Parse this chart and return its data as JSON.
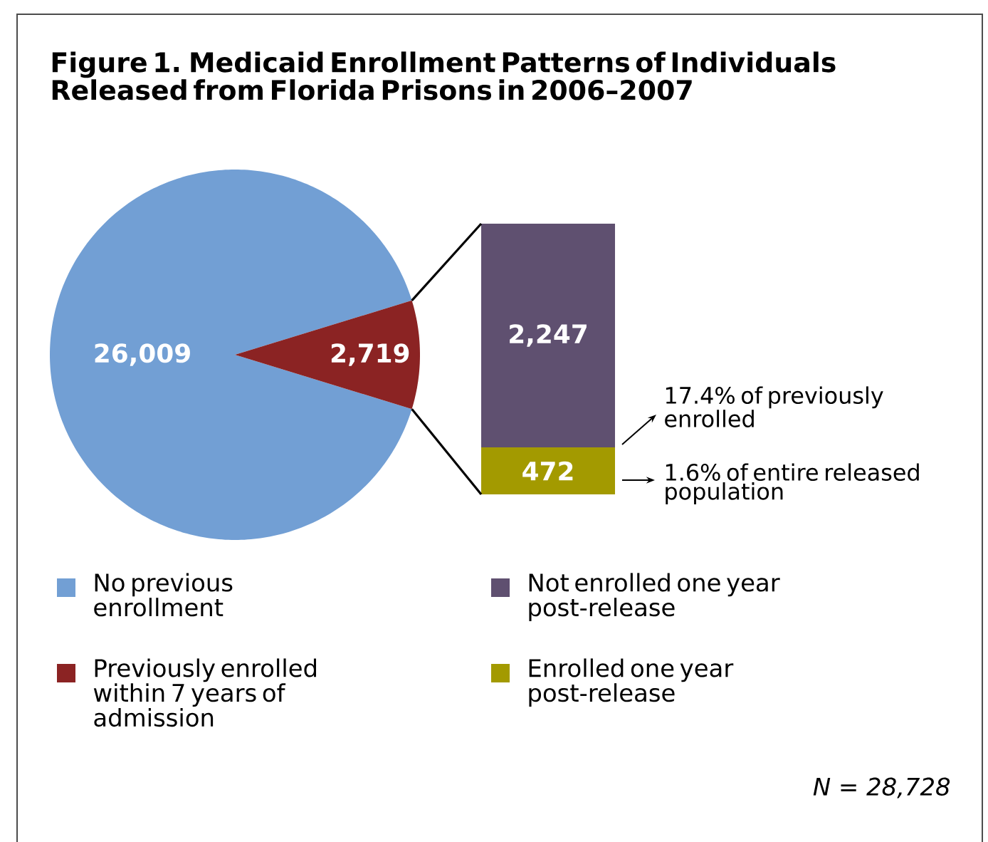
{
  "chart_data": [
    {
      "type": "pie",
      "title": "Figure 1. Medicaid Enrollment Patterns of Individuals Released from Florida Prisons in 2006–2007",
      "categories": [
        "No previous enrollment",
        "Previously enrolled within 7 years of admission"
      ],
      "values": [
        26009,
        2719
      ],
      "value_labels": [
        "26,009",
        "2,719"
      ],
      "colors": [
        "#729fd4",
        "#8b2323"
      ],
      "legend": "bottom"
    },
    {
      "type": "bar",
      "stacked": true,
      "categories": [
        null
      ],
      "series": [
        {
          "name": "Enrolled one year post-release",
          "color": "#a39a00",
          "values": [
            472
          ],
          "value_labels": [
            "472"
          ]
        },
        {
          "name": "Not enrolled one year post-release",
          "color": "#5f5070",
          "values": [
            2247
          ],
          "value_labels": [
            "2,247"
          ]
        }
      ],
      "legend": "bottom",
      "annotations": [
        "17.4% of previously enrolled",
        "1.6% of entire released population",
        "N = 28,728"
      ]
    }
  ]
}
